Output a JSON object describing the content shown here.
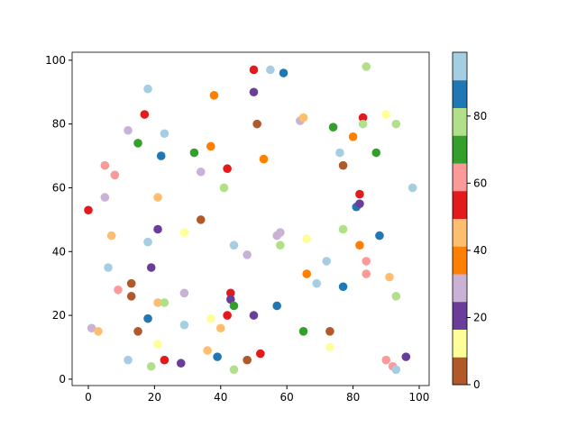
{
  "chart_data": {
    "type": "scatter",
    "x": [
      0,
      1,
      3,
      5,
      5,
      6,
      7,
      8,
      9,
      12,
      12,
      13,
      13,
      15,
      15,
      17,
      18,
      18,
      18,
      19,
      19,
      21,
      21,
      21,
      21,
      22,
      23,
      23,
      23,
      28,
      29,
      29,
      29,
      32,
      34,
      34,
      36,
      37,
      37,
      38,
      39,
      40,
      41,
      42,
      42,
      43,
      43,
      44,
      44,
      44,
      48,
      48,
      50,
      50,
      50,
      51,
      52,
      53,
      55,
      57,
      57,
      58,
      58,
      59,
      64,
      65,
      65,
      66,
      66,
      69,
      72,
      73,
      73,
      74,
      76,
      77,
      77,
      77,
      80,
      81,
      82,
      82,
      82,
      83,
      83,
      84,
      84,
      84,
      87,
      88,
      90,
      90,
      91,
      92,
      93,
      93,
      93,
      96,
      98
    ],
    "y": [
      53,
      16,
      15,
      67,
      57,
      35,
      45,
      64,
      28,
      78,
      6,
      30,
      26,
      74,
      15,
      83,
      91,
      43,
      19,
      35,
      4,
      57,
      47,
      24,
      11,
      70,
      77,
      24,
      6,
      5,
      46,
      27,
      17,
      71,
      65,
      50,
      9,
      73,
      19,
      89,
      7,
      16,
      60,
      66,
      20,
      27,
      25,
      23,
      42,
      3,
      39,
      6,
      97,
      90,
      20,
      80,
      8,
      69,
      97,
      45,
      23,
      46,
      42,
      96,
      81,
      82,
      15,
      44,
      33,
      30,
      37,
      15,
      10,
      79,
      71,
      67,
      47,
      29,
      76,
      54,
      55,
      58,
      42,
      82,
      80,
      98,
      37,
      33,
      71,
      45,
      83,
      6,
      32,
      4,
      80,
      26,
      3,
      7,
      60
    ],
    "c": [
      54,
      29,
      45,
      62,
      29,
      95,
      45,
      62,
      62,
      29,
      95,
      4,
      4,
      70,
      4,
      54,
      95,
      95,
      86,
      20,
      78,
      45,
      20,
      45,
      12,
      86,
      95,
      78,
      54,
      20,
      12,
      29,
      95,
      70,
      29,
      4,
      45,
      37,
      12,
      37,
      86,
      45,
      78,
      54,
      54,
      54,
      20,
      70,
      95,
      78,
      29,
      4,
      54,
      20,
      20,
      4,
      54,
      37,
      95,
      29,
      86,
      29,
      78,
      86,
      29,
      45,
      70,
      12,
      37,
      95,
      95,
      4,
      12,
      70,
      95,
      4,
      78,
      86,
      37,
      86,
      20,
      54,
      37,
      54,
      78,
      78,
      62,
      62,
      70,
      86,
      12,
      62,
      45,
      62,
      78,
      78,
      95,
      20,
      95
    ],
    "colormap": [
      "#b15928",
      "#ffff99",
      "#6a3d9a",
      "#cab2d6",
      "#ff7f00",
      "#fdbf6f",
      "#e31a1c",
      "#fb9a99",
      "#33a02c",
      "#b2df8a",
      "#1f78b4",
      "#a6cee3"
    ],
    "xlim": [
      -4.9,
      103
    ],
    "ylim": [
      -2,
      102.5
    ],
    "xticks": [
      0,
      20,
      40,
      60,
      80,
      100
    ],
    "yticks": [
      0,
      20,
      40,
      60,
      80,
      100
    ],
    "clim": [
      0,
      99
    ],
    "cticks": [
      0,
      20,
      40,
      60,
      80
    ]
  }
}
